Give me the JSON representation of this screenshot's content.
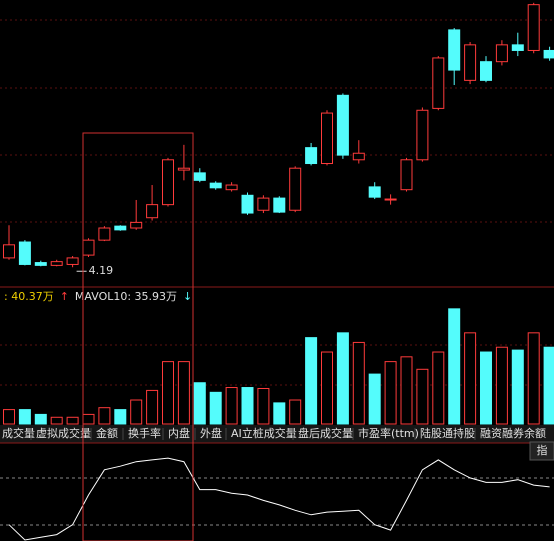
{
  "chart_data": [
    {
      "type": "candlestick",
      "open": [
        4.29,
        4.46,
        4.24,
        4.21,
        4.22,
        4.32,
        4.48,
        4.63,
        4.61,
        4.72,
        4.86,
        5.23,
        5.2,
        5.09,
        5.02,
        4.96,
        4.8,
        4.93,
        4.8,
        5.47,
        5.3,
        6.03,
        5.34,
        5.05,
        4.91,
        5.02,
        5.34,
        5.89,
        6.73,
        6.19,
        6.39,
        6.39,
        6.57,
        6.51,
        6.51
      ],
      "close": [
        4.43,
        4.22,
        4.21,
        4.25,
        4.29,
        4.48,
        4.61,
        4.59,
        4.67,
        4.86,
        5.34,
        5.25,
        5.12,
        5.04,
        5.07,
        4.77,
        4.93,
        4.78,
        5.25,
        5.3,
        5.84,
        5.39,
        5.41,
        4.94,
        4.92,
        5.34,
        5.87,
        6.43,
        6.3,
        6.57,
        6.19,
        6.57,
        6.51,
        7.0,
        6.43
      ],
      "high": [
        4.64,
        4.48,
        4.26,
        4.27,
        4.31,
        4.5,
        4.63,
        4.64,
        4.91,
        5.07,
        5.36,
        5.5,
        5.25,
        5.11,
        5.1,
        4.99,
        4.96,
        4.95,
        5.27,
        5.52,
        5.87,
        6.05,
        5.55,
        5.1,
        4.97,
        5.36,
        5.9,
        6.45,
        6.75,
        6.6,
        6.45,
        6.62,
        6.7,
        7.02,
        6.55
      ],
      "low": [
        4.27,
        4.21,
        4.2,
        4.2,
        4.19,
        4.3,
        4.47,
        4.58,
        4.59,
        4.69,
        4.84,
        5.12,
        5.1,
        5.02,
        5.0,
        4.75,
        4.77,
        4.77,
        4.78,
        5.28,
        5.28,
        5.35,
        5.3,
        4.92,
        4.86,
        5.0,
        5.32,
        5.87,
        6.14,
        6.15,
        6.17,
        6.35,
        6.45,
        6.48,
        6.4
      ],
      "ylim": [
        4.0,
        7.05
      ],
      "up_color": "#ff3b3b",
      "down_color": "#54fcfc",
      "annotations": [
        {
          "text": "4.19"
        }
      ]
    },
    {
      "type": "bar",
      "legend": [
        {
          "text": ": 40.37万",
          "color": "#f0d000"
        },
        {
          "text": "↑",
          "color": "#ff3b3b"
        },
        {
          "text": "MAVOL10: 35.93万",
          "color": "#e0e0e0"
        },
        {
          "text": "↓",
          "color": "#54fcfc"
        }
      ],
      "values": [
        7.5,
        7.5,
        5,
        3.5,
        3.5,
        5,
        8.5,
        7.5,
        12.5,
        17.5,
        32.5,
        32.5,
        21.5,
        16.5,
        19,
        19,
        18.5,
        11,
        12.5,
        45,
        37.5,
        47.5,
        42.5,
        26,
        32.5,
        35,
        28.5,
        37.5,
        60,
        47.5,
        37.5,
        40,
        38.5,
        47.5,
        40
      ],
      "ylim": [
        0,
        62
      ]
    },
    {
      "type": "line",
      "values": [
        17,
        0,
        3,
        6,
        17,
        50,
        78,
        82,
        87,
        89,
        91,
        87,
        56,
        56,
        52,
        50,
        44,
        39,
        33,
        28,
        31,
        32,
        33,
        17,
        11,
        44,
        78,
        89,
        78,
        69,
        64,
        64,
        67,
        61,
        59
      ],
      "ylim": [
        0,
        100
      ],
      "color": "#ffffff"
    }
  ],
  "tabs": [
    "成交量",
    "虚拟成交量",
    "金额",
    "换手率",
    "内盘",
    "外盘",
    "AI立桩成交量",
    "盘后成交量",
    "市盈率(ttm)",
    "陆股通持股",
    "融资融券余额"
  ],
  "corner_button": "指"
}
